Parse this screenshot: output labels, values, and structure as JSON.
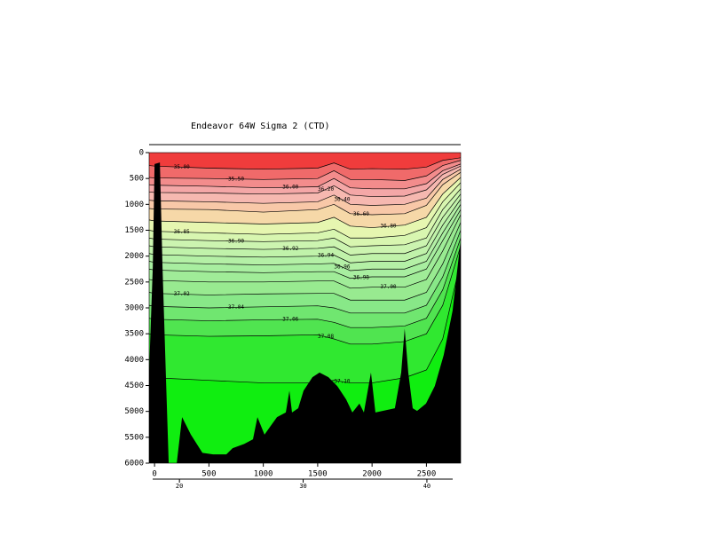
{
  "chart_data": {
    "type": "section",
    "title": "Endeavor 64W Sigma 2 (CTD)",
    "xlim": [
      -50,
      2815
    ],
    "xticks": [
      0,
      500,
      1000,
      1500,
      2000,
      2500
    ],
    "ylim": [
      0,
      6000
    ],
    "yticks": [
      0,
      500,
      1000,
      1500,
      2000,
      2500,
      3000,
      3500,
      4000,
      4500,
      5000,
      5500,
      6000
    ],
    "x2lim": [
      17.55,
      42.73
    ],
    "x2ticks": [
      20,
      30,
      40
    ],
    "surface_color": "#f03c3c",
    "x": [
      -50,
      0,
      500,
      1000,
      1500,
      1650,
      1800,
      2000,
      2300,
      2500,
      2650,
      2815
    ],
    "contours": [
      {
        "label": "35.00",
        "fill": "#f06a6a",
        "depth": [
          250,
          260,
          300,
          320,
          300,
          200,
          320,
          310,
          320,
          280,
          150,
          100
        ]
      },
      {
        "label": "35.50",
        "fill": "#f38c8c",
        "depth": [
          480,
          490,
          500,
          520,
          500,
          350,
          520,
          520,
          540,
          450,
          250,
          150
        ]
      },
      {
        "label": "36.00",
        "fill": "#f4a7a7",
        "depth": [
          620,
          630,
          650,
          680,
          660,
          500,
          680,
          700,
          700,
          600,
          350,
          220
        ]
      },
      {
        "label": "36.20",
        "fill": "#f6b8b0",
        "depth": [
          760,
          770,
          780,
          800,
          780,
          640,
          820,
          850,
          840,
          720,
          420,
          260
        ]
      },
      {
        "label": "36.40",
        "fill": "#f8c8a8",
        "depth": [
          920,
          930,
          950,
          980,
          950,
          820,
          1000,
          1020,
          1000,
          880,
          520,
          320
        ]
      },
      {
        "label": "36.60",
        "fill": "#f6d8a8",
        "depth": [
          1080,
          1090,
          1100,
          1150,
          1100,
          1000,
          1180,
          1200,
          1180,
          1020,
          620,
          380
        ]
      },
      {
        "label": "36.80",
        "fill": "#e6f6b0",
        "depth": [
          1300,
          1320,
          1350,
          1380,
          1350,
          1250,
          1420,
          1450,
          1400,
          1250,
          800,
          480
        ]
      },
      {
        "label": "36.85",
        "fill": "#d8f6b0",
        "depth": [
          1500,
          1520,
          1550,
          1580,
          1550,
          1480,
          1650,
          1650,
          1600,
          1450,
          950,
          580
        ]
      },
      {
        "label": "36.90",
        "fill": "#ccf4b0",
        "depth": [
          1650,
          1670,
          1700,
          1720,
          1700,
          1650,
          1820,
          1800,
          1780,
          1650,
          1100,
          700
        ]
      },
      {
        "label": "36.92",
        "fill": "#c0f2aa",
        "depth": [
          1800,
          1820,
          1850,
          1870,
          1850,
          1820,
          1980,
          1950,
          1950,
          1800,
          1250,
          800
        ]
      },
      {
        "label": "36.94",
        "fill": "#b4f0a6",
        "depth": [
          1950,
          1970,
          2000,
          2020,
          2000,
          1980,
          2130,
          2100,
          2100,
          1950,
          1400,
          900
        ]
      },
      {
        "label": "36.96",
        "fill": "#a8eea0",
        "depth": [
          2100,
          2120,
          2150,
          2170,
          2150,
          2140,
          2280,
          2250,
          2250,
          2100,
          1550,
          1000
        ]
      },
      {
        "label": "36.98",
        "fill": "#a0ec98",
        "depth": [
          2250,
          2270,
          2300,
          2320,
          2300,
          2300,
          2430,
          2400,
          2400,
          2250,
          1700,
          1100
        ]
      },
      {
        "label": "37.00",
        "fill": "#98ea90",
        "depth": [
          2450,
          2470,
          2500,
          2500,
          2480,
          2480,
          2620,
          2600,
          2600,
          2450,
          1900,
          1200
        ]
      },
      {
        "label": "37.02",
        "fill": "#88e888",
        "depth": [
          2700,
          2720,
          2750,
          2730,
          2720,
          2720,
          2850,
          2850,
          2850,
          2700,
          2150,
          1350
        ]
      },
      {
        "label": "37.04",
        "fill": "#70e670",
        "depth": [
          2950,
          2970,
          3000,
          2980,
          2960,
          3000,
          3100,
          3100,
          3100,
          2950,
          2400,
          1500
        ]
      },
      {
        "label": "37.06",
        "fill": "#50e450",
        "depth": [
          3200,
          3220,
          3250,
          3230,
          3220,
          3280,
          3380,
          3380,
          3350,
          3200,
          2650,
          1650
        ]
      },
      {
        "label": "37.08",
        "fill": "#30e830",
        "depth": [
          3500,
          3520,
          3550,
          3540,
          3520,
          3600,
          3700,
          3700,
          3650,
          3500,
          2950,
          1800
        ]
      },
      {
        "label": "37.10",
        "fill": "#10ee10",
        "depth": [
          4300,
          4350,
          4400,
          4450,
          4450,
          4400,
          4450,
          4450,
          4350,
          4200,
          3600,
          2100
        ]
      }
    ],
    "bathymetry": {
      "color": "#000000",
      "x": [
        -49,
        -16,
        0,
        49,
        73,
        106,
        130,
        204,
        253,
        334,
        440,
        538,
        660,
        718,
        824,
        905,
        946,
        1011,
        1068,
        1126,
        1207,
        1240,
        1264,
        1321,
        1370,
        1452,
        1517,
        1599,
        1680,
        1762,
        1819,
        1884,
        1925,
        1990,
        2031,
        2210,
        2268,
        2300,
        2333,
        2374,
        2414,
        2496,
        2577,
        2659,
        2741,
        2815
      ],
      "depth": [
        4170,
        2200,
        220,
        190,
        2200,
        4430,
        6000,
        6000,
        5110,
        5450,
        5800,
        5830,
        5830,
        5710,
        5630,
        5540,
        5110,
        5450,
        5280,
        5110,
        5020,
        4600,
        5020,
        4940,
        4600,
        4340,
        4250,
        4340,
        4510,
        4770,
        5020,
        4850,
        5020,
        4250,
        5020,
        4940,
        4250,
        3400,
        4250,
        4940,
        4990,
        4850,
        4510,
        3910,
        3050,
        1680
      ]
    }
  }
}
